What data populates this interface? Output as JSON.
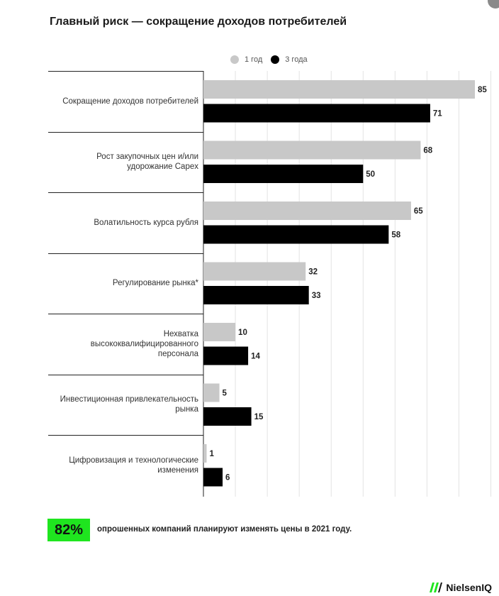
{
  "title": "Главный риск — сокращение доходов потребителей",
  "legend": [
    {
      "name": "1 год",
      "color": "#c8c8c8"
    },
    {
      "name": "3 года",
      "color": "#000000"
    }
  ],
  "chart_data": {
    "type": "bar",
    "orientation": "horizontal",
    "title": "Главный риск — сокращение доходов потребителей",
    "categories": [
      "Сокращение доходов потребителей",
      "Рост закупочных цен и/или удорожание Capex",
      "Волатильность курса рубля",
      "Регулирование рынка*",
      "Нехватка высококвалифицированного персонала",
      "Инвестиционная привлекательность рынка",
      "Цифровизация и технологические изменения"
    ],
    "category_lines": [
      [
        "Сокращение доходов потребителей"
      ],
      [
        "Рост закупочных цен и/или",
        "удорожание Capex"
      ],
      [
        "Волатильность курса рубля"
      ],
      [
        "Регулирование рынка*"
      ],
      [
        "Нехватка",
        "высококвалифицированного",
        "персонала"
      ],
      [
        "Инвестиционная привлекательность",
        "рынка"
      ],
      [
        "Цифровизация и технологические",
        "изменения"
      ]
    ],
    "series": [
      {
        "name": "1 год",
        "color": "#c8c8c8",
        "values": [
          85,
          68,
          65,
          32,
          10,
          5,
          1
        ]
      },
      {
        "name": "3 года",
        "color": "#000000",
        "values": [
          71,
          50,
          58,
          33,
          14,
          15,
          6
        ]
      }
    ],
    "xlim": [
      0,
      90
    ],
    "grid": true,
    "legend_position": "top"
  },
  "stat": {
    "value": "82%",
    "text": "опрошенных компаний планируют изменять цены в 2021 году."
  },
  "brand": "NielsenIQ"
}
